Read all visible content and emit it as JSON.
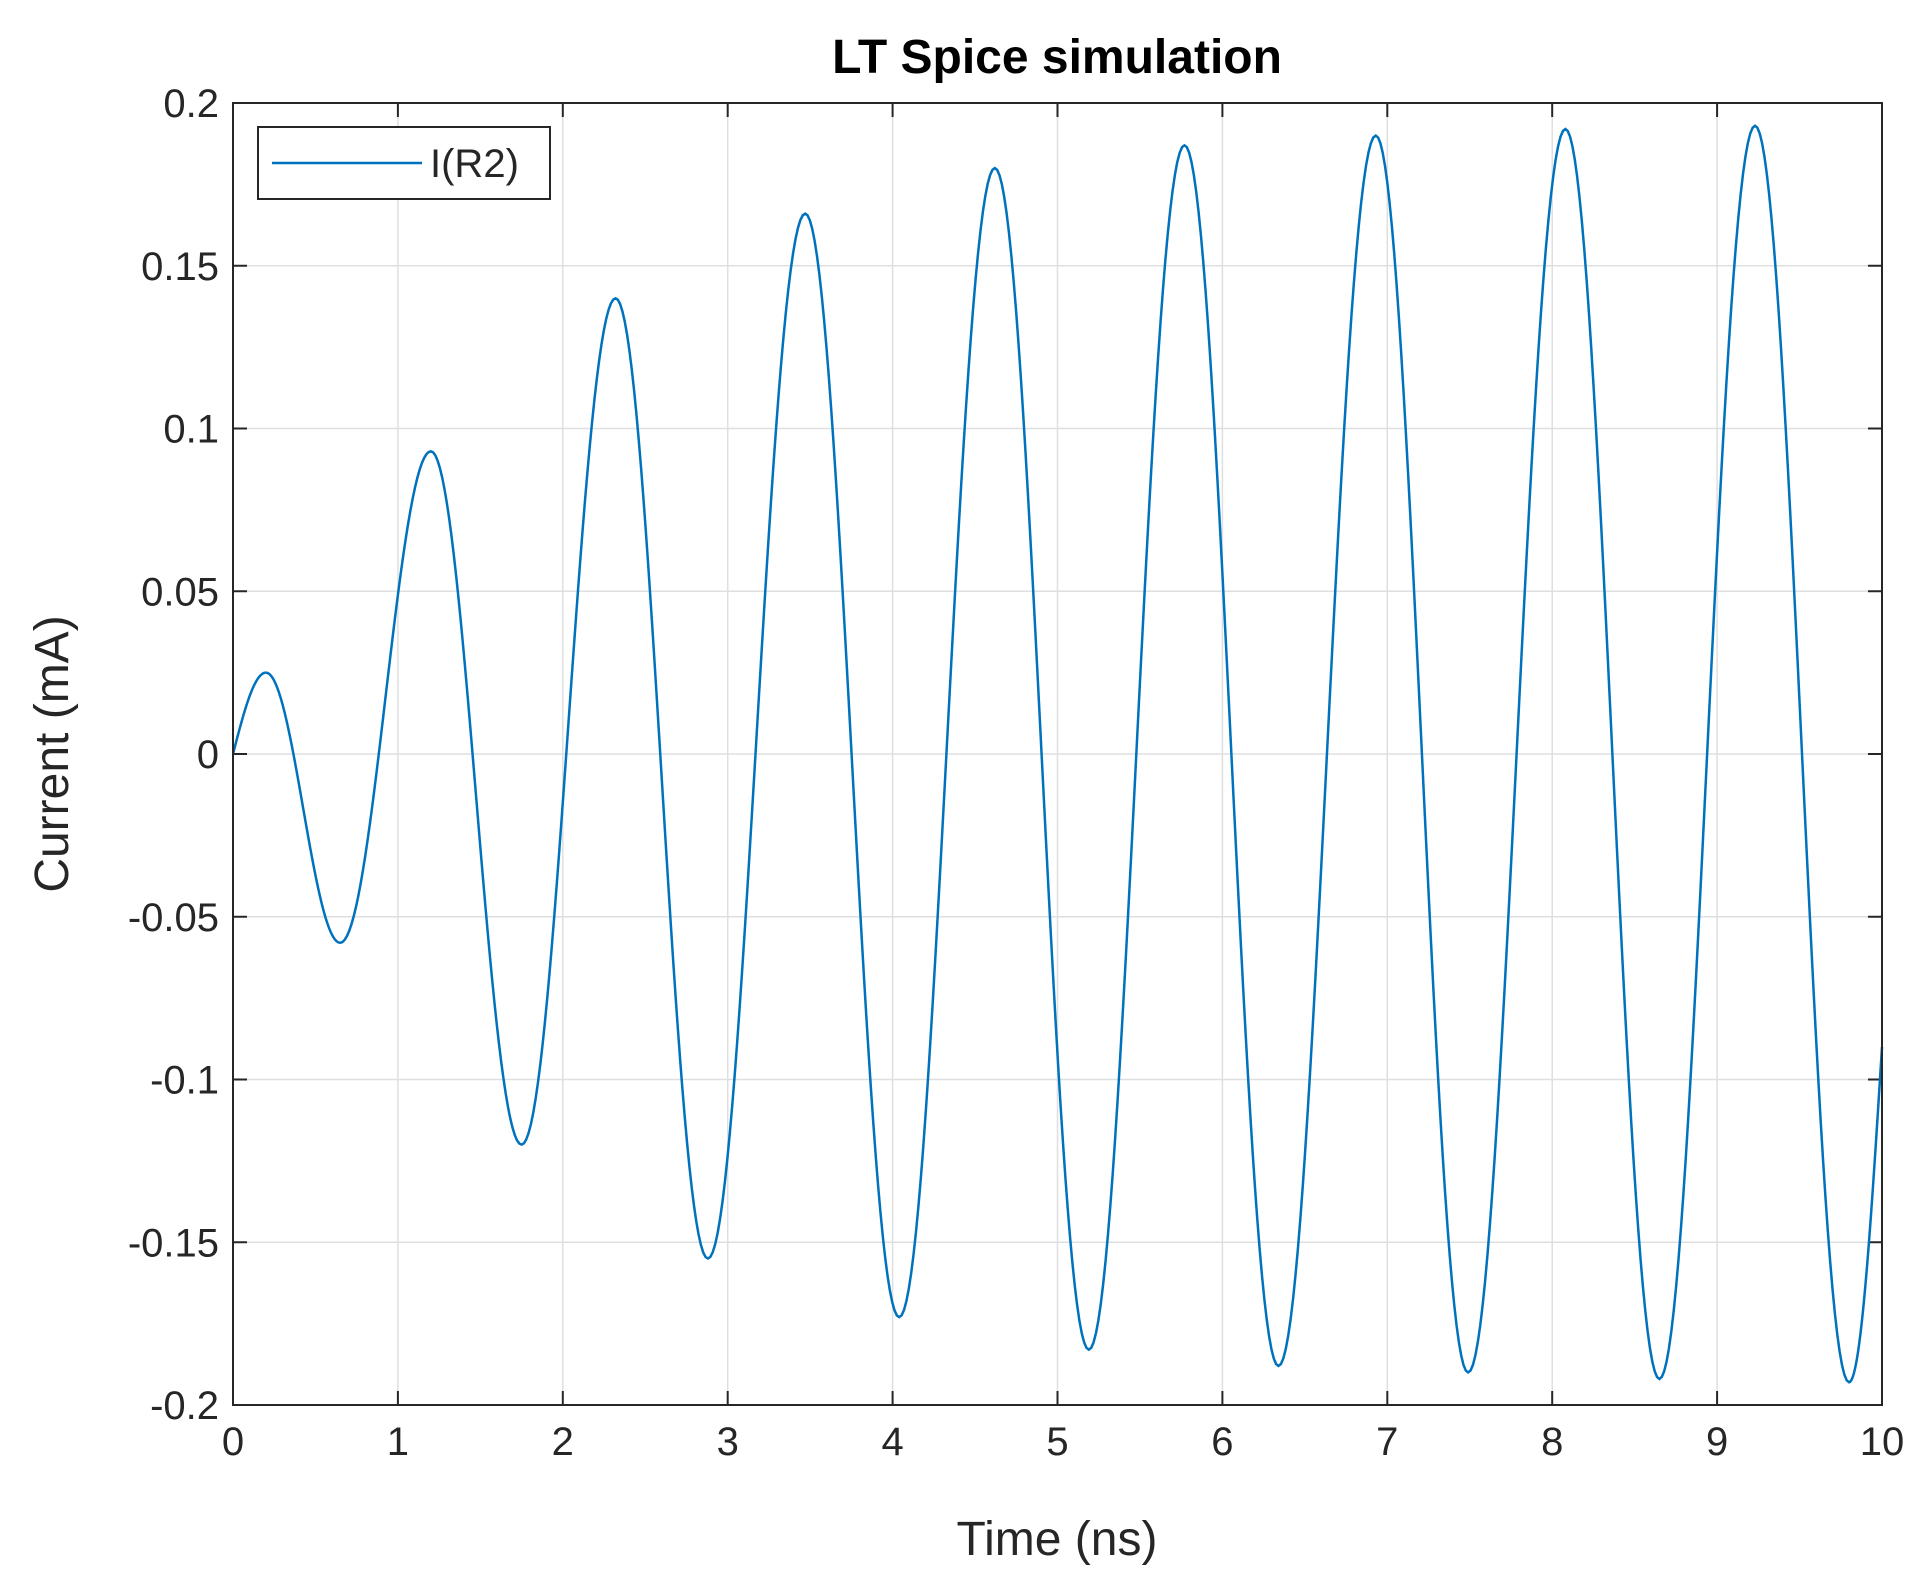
{
  "chart_data": {
    "type": "line",
    "title": "LT Spice simulation",
    "xlabel": "Time (ns)",
    "ylabel": "Current (mA)",
    "xlim": [
      0,
      10
    ],
    "ylim": [
      -0.2,
      0.2
    ],
    "xticks": [
      0,
      1,
      2,
      3,
      4,
      5,
      6,
      7,
      8,
      9,
      10
    ],
    "xtick_labels": [
      "0",
      "1",
      "2",
      "3",
      "4",
      "5",
      "6",
      "7",
      "8",
      "9",
      "10"
    ],
    "yticks": [
      0.2,
      0.15,
      0.1,
      0.05,
      0,
      -0.05,
      -0.1,
      -0.15,
      -0.2
    ],
    "ytick_labels": [
      "0.2",
      "0.15",
      "0.1",
      "0.05",
      "0",
      "-0.05",
      "-0.1",
      "-0.15",
      "-0.2"
    ],
    "grid": true,
    "legend_position": "top-left",
    "series": [
      {
        "name": "I(R2)",
        "color": "#0072bd",
        "extrema": [
          [
            0,
            0
          ],
          [
            0.2,
            0.025
          ],
          [
            0.65,
            -0.058
          ],
          [
            1.2,
            0.093
          ],
          [
            1.75,
            -0.12
          ],
          [
            2.32,
            0.14
          ],
          [
            2.88,
            -0.155
          ],
          [
            3.47,
            0.166
          ],
          [
            4.04,
            -0.173
          ],
          [
            4.62,
            0.18
          ],
          [
            5.19,
            -0.183
          ],
          [
            5.77,
            0.187
          ],
          [
            6.34,
            -0.188
          ],
          [
            6.93,
            0.19
          ],
          [
            7.49,
            -0.19
          ],
          [
            8.08,
            0.192
          ],
          [
            8.65,
            -0.192
          ],
          [
            9.23,
            0.193
          ],
          [
            9.8,
            -0.193
          ],
          [
            10,
            -0.09
          ]
        ]
      }
    ]
  }
}
